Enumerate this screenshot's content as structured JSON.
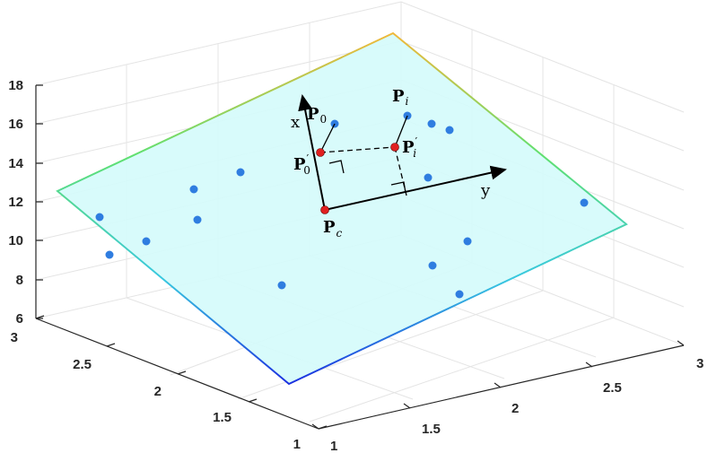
{
  "axes": {
    "z_ticks": [
      "6",
      "8",
      "10",
      "12",
      "14",
      "16",
      "18"
    ],
    "left_ticks": [
      "1",
      "1.5",
      "2",
      "2.5",
      "3"
    ],
    "right_ticks": [
      "1",
      "1.5",
      "2",
      "2.5",
      "3"
    ]
  },
  "chart_data": {
    "type": "scatter",
    "plane_fill": "#d5fbfb",
    "plane_edge_colors": [
      "#1a2ee0",
      "#38c8e0",
      "#60e070",
      "#f0b83a"
    ],
    "point_color": "#2f7de0",
    "marker_color": "#e02020",
    "point_count": 16
  },
  "labels": {
    "p_bold": "P",
    "p0_sub": "0",
    "pi_sub": "i",
    "pc_sub": "c",
    "prime": "′",
    "x_axis": "x",
    "y_axis": "y"
  }
}
